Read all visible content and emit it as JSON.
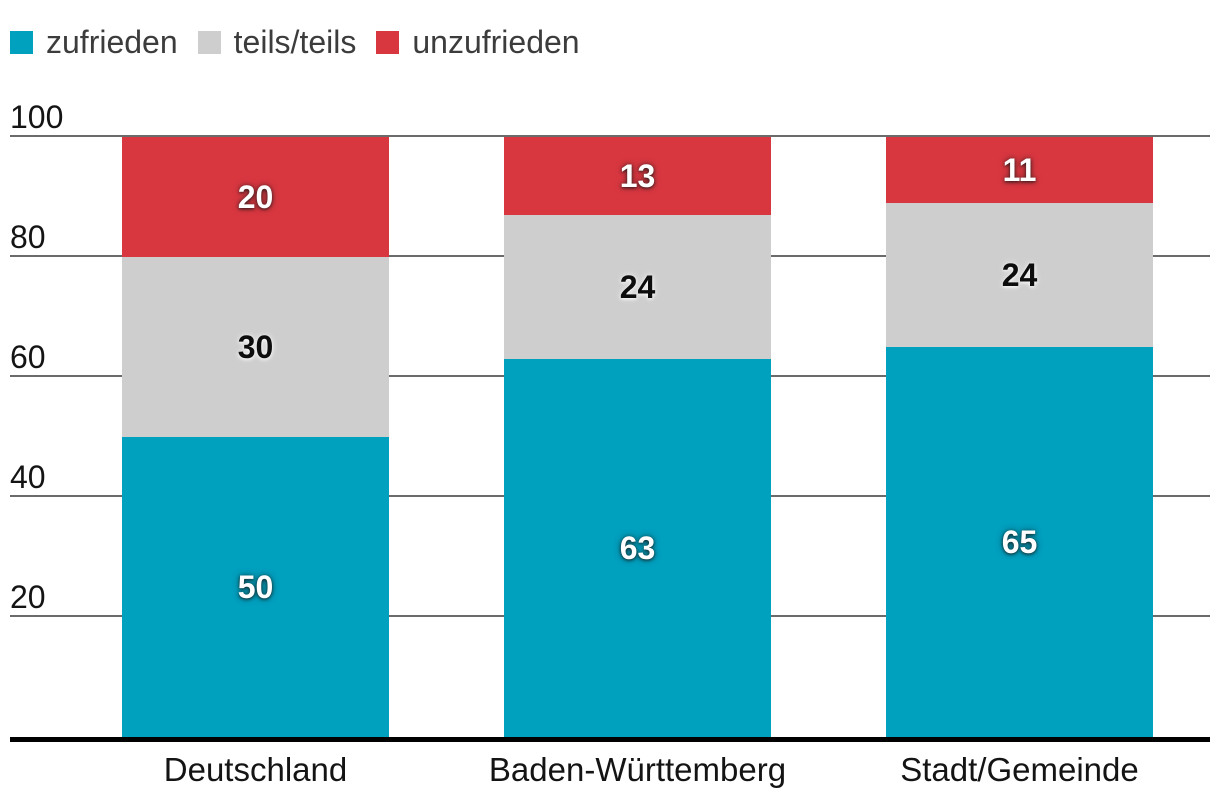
{
  "legend": {
    "items": [
      {
        "label": "zufrieden",
        "color": "#00a0bf"
      },
      {
        "label": "teils/teils",
        "color": "#cecece"
      },
      {
        "label": "unzufrieden",
        "color": "#d93740"
      }
    ]
  },
  "chart_data": {
    "type": "bar",
    "stacked": true,
    "title": "",
    "categories": [
      "Deutschland",
      "Baden-Württemberg",
      "Stadt/Gemeinde"
    ],
    "series": [
      {
        "name": "zufrieden",
        "color": "#00a0bf",
        "label_color": "#ffffff",
        "values": [
          50,
          63,
          65
        ]
      },
      {
        "name": "teils/teils",
        "color": "#cecece",
        "label_color": "#111111",
        "values": [
          30,
          24,
          24
        ]
      },
      {
        "name": "unzufrieden",
        "color": "#d93740",
        "label_color": "#ffffff",
        "values": [
          20,
          13,
          11
        ]
      }
    ],
    "y_ticks": [
      100,
      80,
      60,
      40,
      20
    ],
    "ylim": [
      0,
      100
    ],
    "grid": true,
    "legend_position": "top-left",
    "value_labels": "centered-in-segment"
  },
  "colors": {
    "background": "#ffffff",
    "gridline": "#6b6b6b",
    "axis_line": "#000000",
    "tick_text": "#141414",
    "legend_text": "#3c3c3c"
  }
}
